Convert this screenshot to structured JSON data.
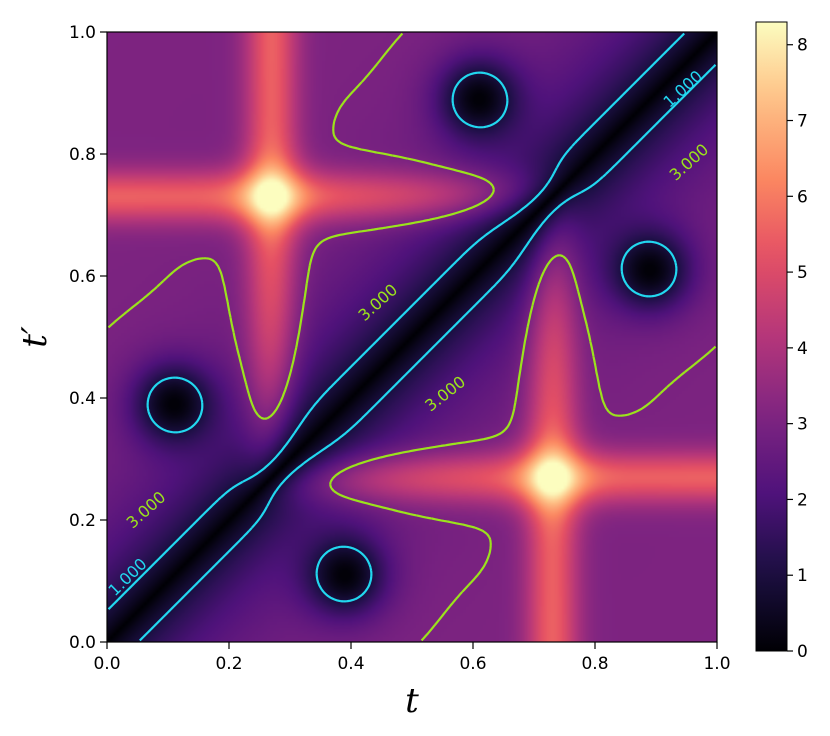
{
  "chart_data": {
    "type": "heatmap",
    "colormap": "magma",
    "xlabel": "t",
    "ylabel": "t′",
    "xlim": [
      0.0,
      1.0
    ],
    "ylim": [
      0.0,
      1.0
    ],
    "x_ticks": [
      "0.0",
      "0.2",
      "0.4",
      "0.6",
      "0.8",
      "1.0"
    ],
    "y_ticks": [
      "0.0",
      "0.2",
      "0.4",
      "0.6",
      "0.8",
      "1.0"
    ],
    "colorbar": {
      "range": [
        0,
        8.3
      ],
      "ticks": [
        "0",
        "1",
        "2",
        "3",
        "4",
        "5",
        "6",
        "7",
        "8"
      ]
    },
    "hotspots": [
      {
        "x": 0.27,
        "y": 0.73,
        "value": 8.3
      },
      {
        "x": 0.73,
        "y": 0.27,
        "value": 8.3
      }
    ],
    "minima": [
      {
        "x": 0.11,
        "y": 0.39,
        "value": 0.0
      },
      {
        "x": 0.39,
        "y": 0.11,
        "value": 0.0
      },
      {
        "x": 0.61,
        "y": 0.89,
        "value": 0.0
      },
      {
        "x": 0.89,
        "y": 0.61,
        "value": 0.0
      }
    ],
    "diagonal": {
      "description_value": 0.0
    },
    "contours": [
      {
        "level": 1.0,
        "label": "1.000",
        "color": "#22d8f0",
        "style": "dashed"
      },
      {
        "level": 3.0,
        "label": "3.000",
        "color": "#9be31c",
        "style": "dashed"
      }
    ],
    "grid": false
  }
}
